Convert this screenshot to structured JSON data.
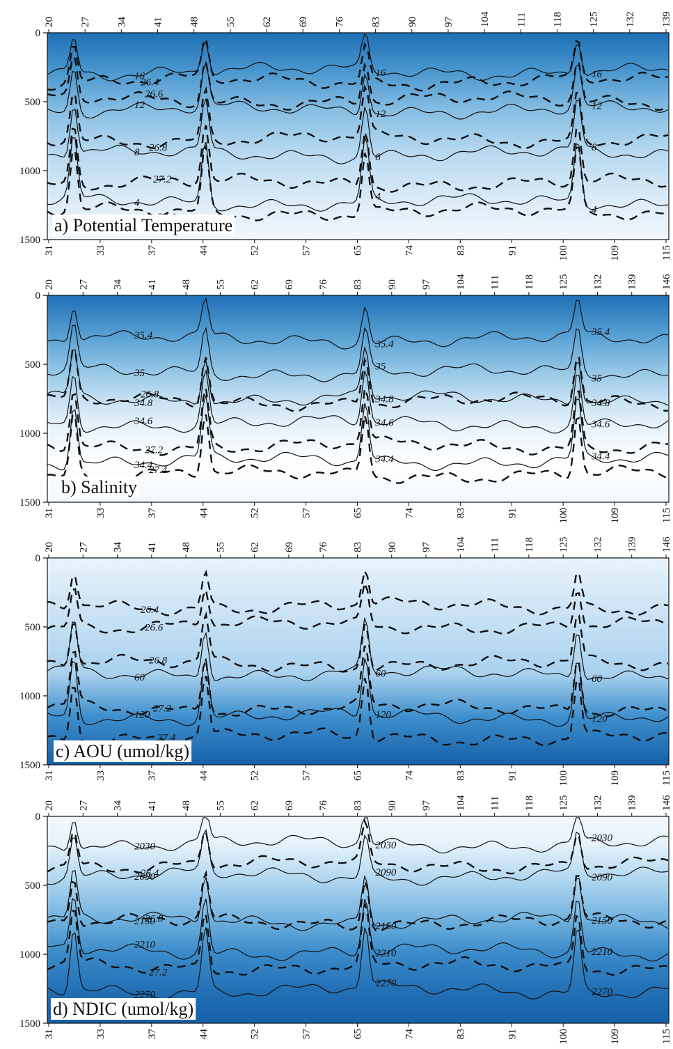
{
  "figure": {
    "background": "#ffffff"
  },
  "chart_data": [
    {
      "type": "heatmap",
      "title": "a) Potential Temperature",
      "ylim": [
        1500,
        0
      ],
      "y_ticks": [
        "0",
        "500",
        "1000",
        "1500"
      ],
      "top_stations": [
        "20",
        "27",
        "34",
        "41",
        "48",
        "55",
        "62",
        "69",
        "76",
        "83",
        "90",
        "97",
        "104",
        "111",
        "118",
        "125",
        "132",
        "139"
      ],
      "bottom_stations": [
        "31",
        "33",
        "37",
        "44",
        "52",
        "57",
        "65",
        "74",
        "83",
        "91",
        "100",
        "109",
        "115"
      ],
      "colors": {
        "shallow": "#1e6fb5",
        "deep": "#f2f8fd"
      },
      "solid_contours": [
        {
          "label": "16",
          "depth": 280,
          "mid": "#4a97cf"
        },
        {
          "label": "12",
          "depth": 560,
          "mid": "#86bde2"
        },
        {
          "label": "8",
          "depth": 880,
          "mid": "#b9daf0"
        },
        {
          "label": "4",
          "depth": 1230,
          "mid": "#dcecf8"
        }
      ],
      "density_contours": [
        {
          "label": "26.4",
          "depth": 300
        },
        {
          "label": "26.6",
          "depth": 440
        },
        {
          "label": "26.8",
          "depth": 720
        },
        {
          "label": "27.2",
          "depth": 1040
        },
        {
          "label": "27.4",
          "depth": 1250
        }
      ]
    },
    {
      "type": "heatmap",
      "title": "b) Salinity",
      "ylim": [
        1500,
        0
      ],
      "y_ticks": [
        "0",
        "500",
        "1000",
        "1500"
      ],
      "top_stations": [
        "20",
        "27",
        "34",
        "41",
        "48",
        "55",
        "62",
        "69",
        "76",
        "83",
        "90",
        "97",
        "104",
        "111",
        "118",
        "125",
        "132",
        "139",
        "146"
      ],
      "bottom_stations": [
        "31",
        "33",
        "37",
        "44",
        "52",
        "57",
        "65",
        "74",
        "83",
        "91",
        "100",
        "109",
        "115"
      ],
      "colors": {
        "shallow": "#1e6fb5",
        "deep": "#f2f8fd"
      },
      "solid_contours": [
        {
          "label": "35.4",
          "depth": 320,
          "mid": "#5ea5d6"
        },
        {
          "label": "35",
          "depth": 560,
          "mid": "#97c8e7"
        },
        {
          "label": "34.8",
          "depth": 750,
          "mid": "#c4e0f2"
        },
        {
          "label": "34.6",
          "depth": 930,
          "mid": "#e4f1fa"
        },
        {
          "label": "34.4",
          "depth": 1200,
          "mid": "#ffffff"
        }
      ],
      "density_contours": [
        {
          "label": "26.8",
          "depth": 720
        },
        {
          "label": "27.2",
          "depth": 1040
        },
        {
          "label": "27.4",
          "depth": 1250
        }
      ]
    },
    {
      "type": "heatmap",
      "title": "c) AOU (umol/kg)",
      "ylim": [
        1500,
        0
      ],
      "y_ticks": [
        "0",
        "500",
        "1000",
        "1500"
      ],
      "top_stations": [
        "20",
        "27",
        "34",
        "41",
        "48",
        "55",
        "62",
        "69",
        "76",
        "83",
        "90",
        "97",
        "104",
        "111",
        "118",
        "125",
        "132",
        "139",
        "146"
      ],
      "bottom_stations": [
        "31",
        "33",
        "37",
        "44",
        "52",
        "57",
        "65",
        "74",
        "83",
        "91",
        "100",
        "109",
        "115"
      ],
      "colors": {
        "shallow": "#e8f3fb",
        "deep": "#1560a8"
      },
      "solid_contours": [
        {
          "label": "60",
          "depth": 840,
          "mid": "#a9d1ee"
        },
        {
          "label": "120",
          "depth": 1150,
          "mid": "#3e8fcd"
        }
      ],
      "density_contours": [
        {
          "label": "26.4",
          "depth": 300
        },
        {
          "label": "26.6",
          "depth": 440
        },
        {
          "label": "26.8",
          "depth": 720
        },
        {
          "label": "27.2",
          "depth": 1040
        },
        {
          "label": "27.4",
          "depth": 1250
        }
      ]
    },
    {
      "type": "heatmap",
      "title": "d) NDIC (umol/kg)",
      "ylim": [
        1500,
        0
      ],
      "y_ticks": [
        "0",
        "500",
        "1000",
        "1500"
      ],
      "top_stations": [
        "20",
        "27",
        "34",
        "41",
        "48",
        "55",
        "62",
        "69",
        "76",
        "83",
        "90",
        "97",
        "104",
        "111",
        "118",
        "125",
        "132",
        "139",
        "146"
      ],
      "bottom_stations": [
        "31",
        "33",
        "37",
        "44",
        "52",
        "57",
        "65",
        "74",
        "83",
        "91",
        "100",
        "109",
        "115"
      ],
      "colors": {
        "shallow": "#f2f8fd",
        "deep": "#1560a8"
      },
      "solid_contours": [
        {
          "label": "2030",
          "depth": 200,
          "mid": "#e6f2fa"
        },
        {
          "label": "2090",
          "depth": 430,
          "mid": "#b7daf1"
        },
        {
          "label": "2150",
          "depth": 760,
          "mid": "#6eb0de"
        },
        {
          "label": "2210",
          "depth": 980,
          "mid": "#3d8cca"
        },
        {
          "label": "2270",
          "depth": 1260,
          "mid": "#2370b5"
        }
      ],
      "density_contours": [
        {
          "label": "26.4",
          "depth": 300
        },
        {
          "label": "26.8",
          "depth": 720
        },
        {
          "label": "27.2",
          "depth": 1040
        }
      ]
    }
  ]
}
